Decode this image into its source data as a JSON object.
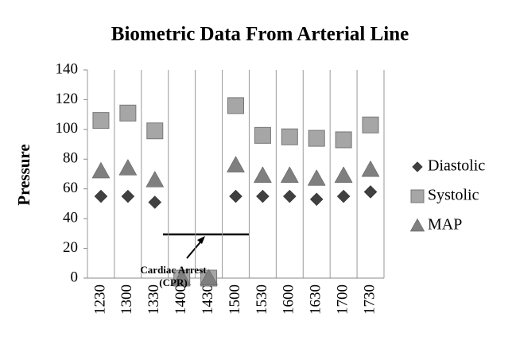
{
  "chart_data": {
    "type": "scatter",
    "title": "Biometric Data From Arterial Line",
    "y_label": "Pressure",
    "categories": [
      "1230",
      "1300",
      "1330",
      "1400",
      "1430",
      "1500",
      "1530",
      "1600",
      "1630",
      "1700",
      "1730"
    ],
    "series": [
      {
        "name": "Diastolic",
        "color": "#404040",
        "marker": "diamond",
        "values": [
          55,
          55,
          51,
          0,
          0,
          55,
          55,
          55,
          53,
          55,
          58
        ]
      },
      {
        "name": "Systolic",
        "color": "#a6a6a6",
        "marker": "square",
        "values": [
          106,
          111,
          99,
          0,
          0,
          116,
          96,
          95,
          94,
          93,
          103
        ]
      },
      {
        "name": "MAP",
        "color": "#7f7f7f",
        "marker": "triangle",
        "values": [
          72,
          74,
          66,
          0,
          0,
          76,
          69,
          69,
          67,
          69,
          73
        ]
      }
    ],
    "ylim": [
      0,
      140
    ],
    "yticks": [
      0,
      20,
      40,
      60,
      80,
      100,
      120,
      140
    ],
    "grid": true,
    "legend": "right",
    "annotation": [
      "Cardiac Arrest",
      "(CPR)"
    ]
  }
}
